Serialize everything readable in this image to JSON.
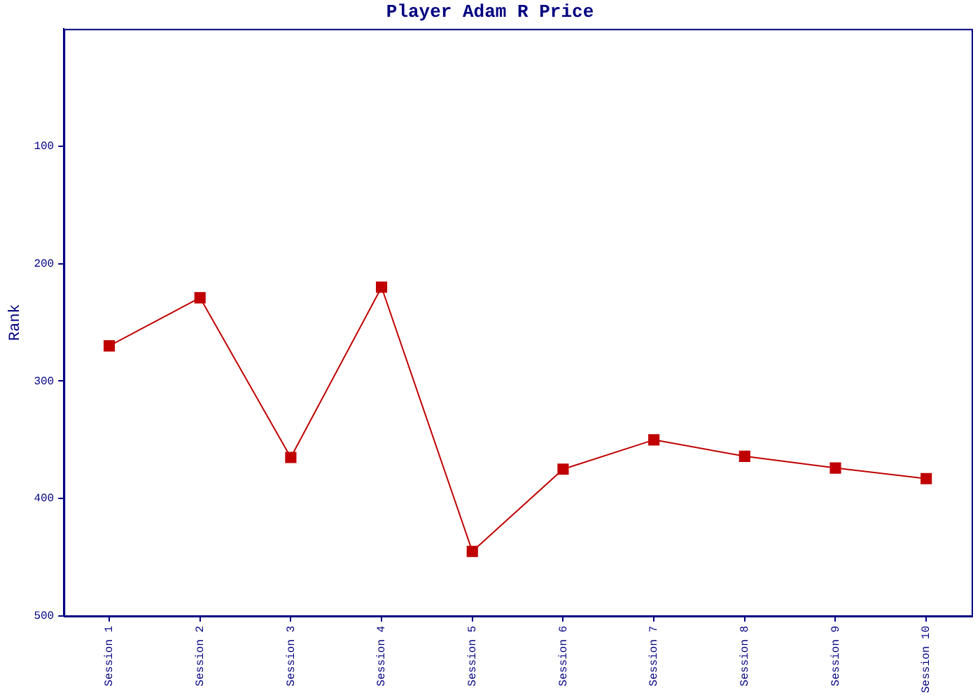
{
  "chart_data": {
    "type": "line",
    "title": "Player Adam R Price",
    "ylabel": "Rank",
    "categories": [
      "Session 1",
      "Session 2",
      "Session 3",
      "Session 4",
      "Session 5",
      "Session 6",
      "Session 7",
      "Session 8",
      "Session 9",
      "Session 10"
    ],
    "series": [
      {
        "color": "#c00000",
        "values": [
          270,
          229,
          365,
          220,
          445,
          375,
          350,
          364,
          374,
          383
        ]
      }
    ],
    "ylim": [
      500,
      0
    ],
    "yticks": [
      100,
      200,
      300,
      400,
      500
    ],
    "marker": "square",
    "line_style": "solid",
    "grid": false,
    "legend": false
  }
}
